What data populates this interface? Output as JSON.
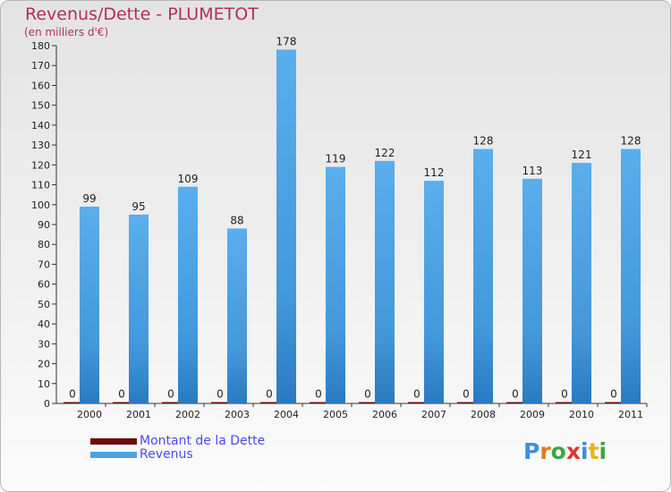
{
  "chart_data": {
    "type": "bar",
    "title": "Revenus/Dette - PLUMETOT",
    "subtitle": "(en milliers d'€)",
    "categories": [
      "2000",
      "2001",
      "2002",
      "2003",
      "2004",
      "2005",
      "2006",
      "2007",
      "2008",
      "2009",
      "2010",
      "2011"
    ],
    "series": [
      {
        "name": "Montant de la Dette",
        "color": "#6b0a0a",
        "values": [
          0,
          0,
          0,
          0,
          0,
          0,
          0,
          0,
          0,
          0,
          0,
          0
        ]
      },
      {
        "name": "Revenus",
        "color": "#4aa3e6",
        "values": [
          99,
          95,
          109,
          88,
          178,
          119,
          122,
          112,
          128,
          113,
          121,
          128
        ]
      }
    ],
    "ylim": [
      0,
      180
    ],
    "yticks": [
      0,
      10,
      20,
      30,
      40,
      50,
      60,
      70,
      80,
      90,
      100,
      110,
      120,
      130,
      140,
      150,
      160,
      170,
      180
    ],
    "grid": false,
    "legend_position": "bottom-left"
  },
  "legend": {
    "items": [
      {
        "label": "Montant de la Dette",
        "color": "#6b0a0a"
      },
      {
        "label": "Revenus",
        "color": "#4aa3e6"
      }
    ]
  },
  "brand": {
    "text": "Proxiti",
    "letter_colors": [
      "#3a8ee0",
      "#e07a1f",
      "#39a845",
      "#d83a2a",
      "#3a8ee0",
      "#e6b21f",
      "#39a845"
    ]
  }
}
